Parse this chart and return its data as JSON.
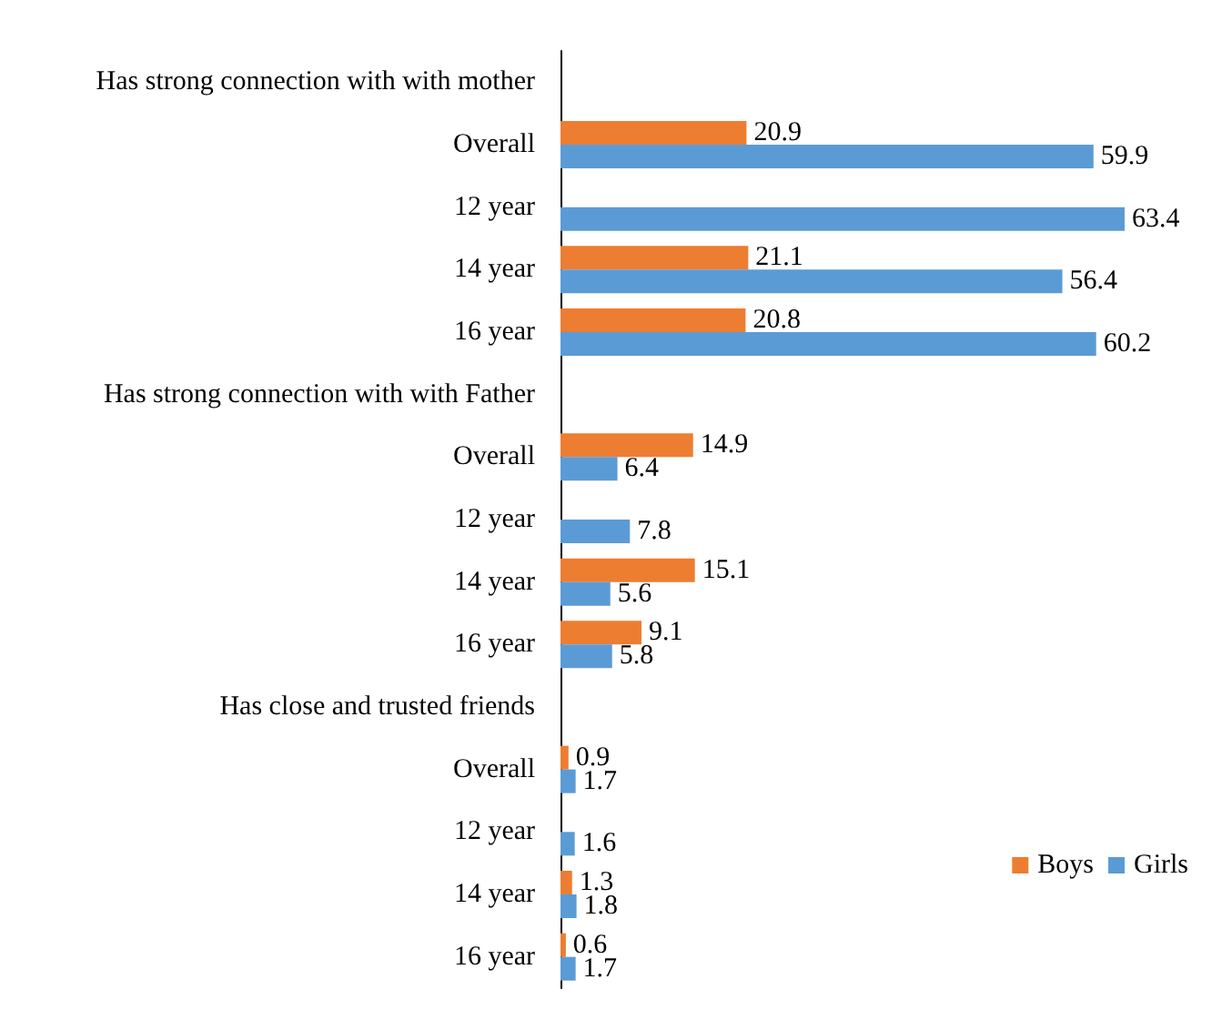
{
  "chart_data": {
    "type": "bar",
    "orientation": "horizontal",
    "categories": [
      "Has strong connection with with mother",
      "Overall",
      "12 year",
      "14 year",
      "16 year",
      "Has strong connection with with Father",
      "Overall",
      "12 year",
      "14 year",
      "16 year",
      "Has close and trusted friends",
      "Overall",
      "12 year",
      "14 year",
      "16 year"
    ],
    "series": [
      {
        "name": "Boys",
        "color": "#ed7d31",
        "values": [
          null,
          20.9,
          null,
          21.1,
          20.8,
          null,
          14.9,
          null,
          15.1,
          9.1,
          null,
          0.9,
          null,
          1.3,
          0.6
        ]
      },
      {
        "name": "Girls",
        "color": "#5b9bd5",
        "values": [
          null,
          59.9,
          63.4,
          56.4,
          60.2,
          null,
          6.4,
          7.8,
          5.6,
          5.8,
          null,
          1.7,
          1.6,
          1.8,
          1.7
        ]
      }
    ],
    "data_labels": true,
    "legend": "bottom right",
    "grid": false,
    "tick_labels": "y"
  }
}
